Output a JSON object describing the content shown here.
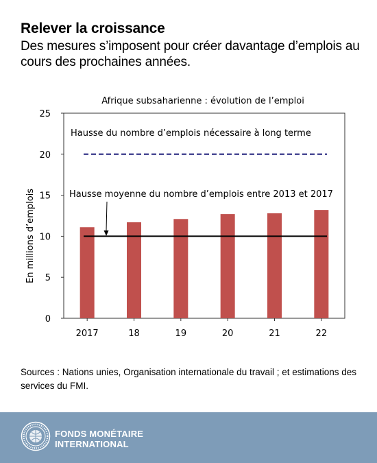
{
  "header": {
    "title": "Relever la croissance",
    "subtitle": "Des mesures s’imposent pour créer davantage d’emplois au cours des prochaines années."
  },
  "chart_data": {
    "type": "bar",
    "title": "Afrique subsaharienne : évolution de l’emploi",
    "xlabel": "",
    "ylabel": "En millions d’emplois",
    "categories": [
      "2017",
      "18",
      "19",
      "20",
      "21",
      "22"
    ],
    "values": [
      11.1,
      11.7,
      12.1,
      12.7,
      12.8,
      13.2
    ],
    "ylim": [
      0,
      25
    ],
    "yticks": [
      "0",
      "5",
      "10",
      "15",
      "20",
      "25"
    ],
    "bar_color": "#c0504d",
    "grid": false,
    "reference_lines": [
      {
        "label": "Hausse du nombre d’emplois nécessaire à long terme",
        "value": 20,
        "style": "dashed",
        "color": "#1f1f7a"
      },
      {
        "label": "Hausse moyenne du nombre d’emplois entre 2013 et 2017",
        "value": 10,
        "style": "solid",
        "color": "#000000"
      }
    ]
  },
  "sources": "Sources : Nations unies, Organisation internationale du travail ; et estimations des services du FMI.",
  "footer": {
    "org_line1": "FONDS MONÉTAIRE",
    "org_line2": "INTERNATIONAL",
    "seal_text": "INTERNATIONAL MONETARY FUND",
    "background": "#7e9cb8"
  }
}
